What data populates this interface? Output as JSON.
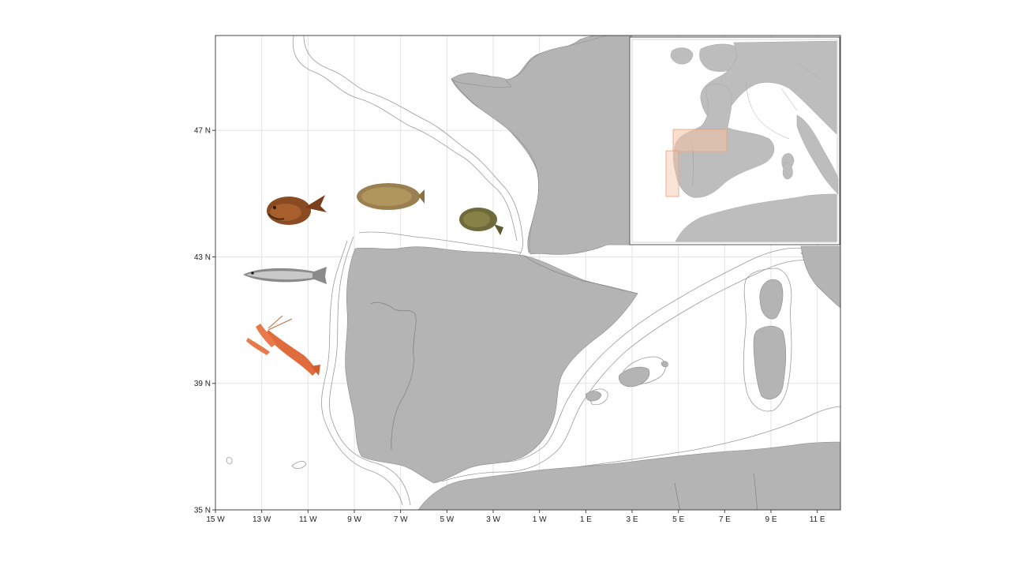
{
  "axes": {
    "x_ticks": [
      "15 W",
      "13 W",
      "11 W",
      "9 W",
      "7 W",
      "5 W",
      "3 W",
      "1 W",
      "1 E",
      "3 E",
      "5 E",
      "7 E",
      "9 E",
      "11 E"
    ],
    "y_ticks": [
      "47 N",
      "43 N",
      "39 N",
      "35 N"
    ],
    "x_range": [
      -15,
      12
    ],
    "y_range": [
      35,
      50
    ]
  },
  "colors": {
    "land": "#b4b4b4",
    "isobath": "#9a9a9a",
    "grid": "#e3e3e3",
    "highlight_box": "#f4c2a6"
  },
  "species_icons": [
    "anglerfish-icon",
    "sole-icon",
    "flatfish-icon",
    "hake-icon",
    "norway-lobster-icon"
  ],
  "inset": {
    "highlight_boxes": 2
  }
}
